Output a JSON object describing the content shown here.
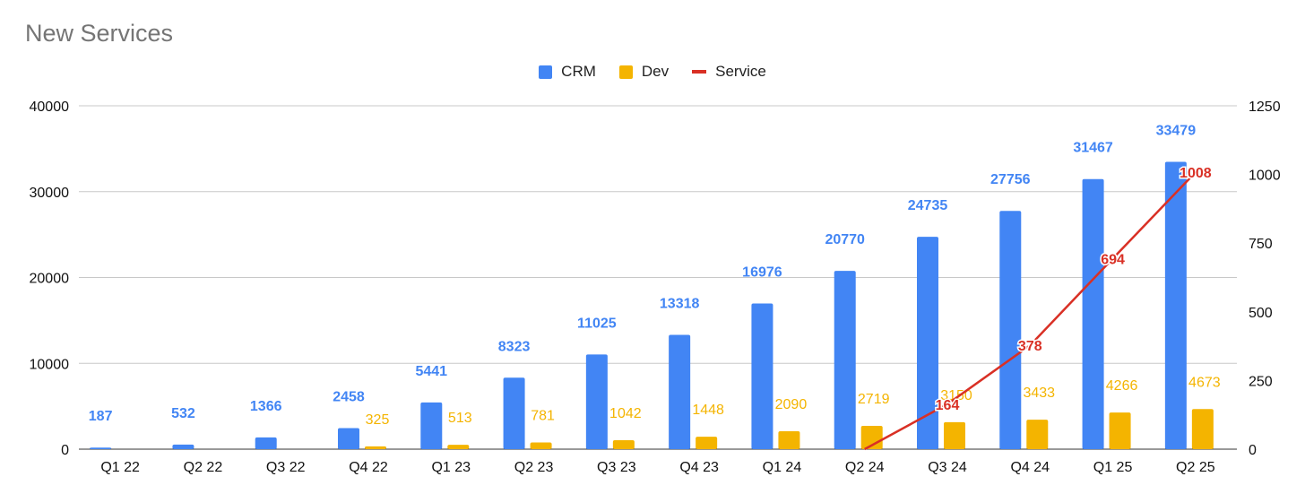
{
  "chart_data": {
    "type": "bar",
    "title": "New Services",
    "categories": [
      "Q1 22",
      "Q2 22",
      "Q3 22",
      "Q4 22",
      "Q1 23",
      "Q2 23",
      "Q3 23",
      "Q4 23",
      "Q1 24",
      "Q2 24",
      "Q3 24",
      "Q4 24",
      "Q1 25",
      "Q2 25"
    ],
    "series": [
      {
        "name": "CRM",
        "type": "bar",
        "axis": "left",
        "color": "#4285f4",
        "values": [
          187,
          532,
          1366,
          2458,
          5441,
          8323,
          11025,
          13318,
          16976,
          20770,
          24735,
          27756,
          31467,
          33479
        ],
        "labels": [
          "187",
          "532",
          "1366",
          "2458",
          "5441",
          "8323",
          "11025",
          "13318",
          "16976",
          "20770",
          "24735",
          "27756",
          "31467",
          "33479"
        ]
      },
      {
        "name": "Dev",
        "type": "bar",
        "axis": "left",
        "color": "#f4b400",
        "values": [
          null,
          null,
          null,
          325,
          513,
          781,
          1042,
          1448,
          2090,
          2719,
          3150,
          3433,
          4266,
          4673
        ],
        "labels": [
          "",
          "",
          "",
          "325",
          "513",
          "781",
          "1042",
          "1448",
          "2090",
          "2719",
          "3150",
          "3433",
          "4266",
          "4673"
        ]
      },
      {
        "name": "Service",
        "type": "line",
        "axis": "right",
        "color": "#d93025",
        "values": [
          null,
          null,
          null,
          null,
          null,
          null,
          null,
          null,
          null,
          0,
          164,
          378,
          694,
          1008
        ],
        "labels": [
          "",
          "",
          "",
          "",
          "",
          "",
          "",
          "",
          "",
          "",
          "164",
          "378",
          "694",
          "1008"
        ]
      }
    ],
    "ylim_left": [
      0,
      40000
    ],
    "yticks_left": [
      "0",
      "10000",
      "20000",
      "30000",
      "40000"
    ],
    "ylim_right": [
      0,
      1250
    ],
    "yticks_right": [
      "0",
      "250",
      "500",
      "750",
      "1000",
      "1250"
    ],
    "xlabel": "",
    "ylabel": "",
    "grid": true,
    "legend_position": "top-center"
  }
}
